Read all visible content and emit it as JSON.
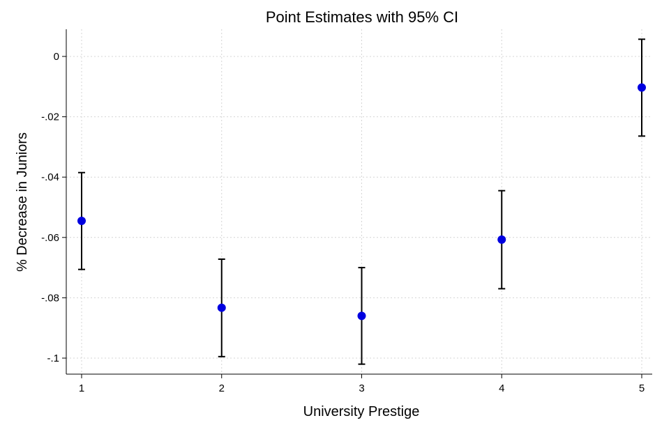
{
  "chart_data": {
    "type": "scatter",
    "title": "Point Estimates with 95% CI",
    "xlabel": "University Prestige",
    "ylabel": "% Decrease in Juniors",
    "x": [
      1,
      2,
      3,
      4,
      5
    ],
    "series": [
      {
        "values": [
          -0.0545,
          -0.0833,
          -0.086,
          -0.0607,
          -0.0103
        ],
        "ci_lower": [
          -0.0706,
          -0.0995,
          -0.102,
          -0.077,
          -0.0264
        ],
        "ci_upper": [
          -0.0385,
          -0.0672,
          -0.07,
          -0.0445,
          0.0057
        ]
      }
    ],
    "xticks": [
      1,
      2,
      3,
      4,
      5
    ],
    "xtick_labels": [
      "1",
      "2",
      "3",
      "4",
      "5"
    ],
    "yticks": [
      0,
      -0.02,
      -0.04,
      -0.06,
      -0.08,
      -0.1
    ],
    "ytick_labels": [
      "0",
      "-.02",
      "-.04",
      "-.06",
      "-.08",
      "-.1"
    ],
    "xlim": [
      1,
      5
    ],
    "ylim": [
      -0.105,
      0.008
    ],
    "grid": true,
    "colors": {
      "point": "#0000e0",
      "ci": "#000000",
      "grid": "#d4d4d4"
    }
  }
}
